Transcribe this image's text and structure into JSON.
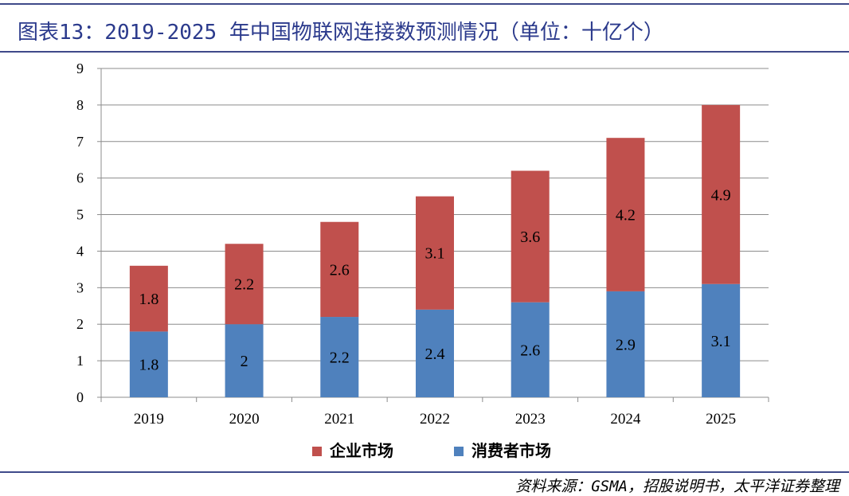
{
  "title": "图表13：2019-2025 年中国物联网连接数预测情况（单位：十亿个）",
  "source": "资料来源：GSMA，招股说明书，太平洋证券整理",
  "colors": {
    "enterprise": "#c0504d",
    "consumer": "#4f81bd",
    "frame": "#3f4a8a",
    "title": "#2b3a8c"
  },
  "chart_data": {
    "type": "bar",
    "stacked": true,
    "categories": [
      "2019",
      "2020",
      "2021",
      "2022",
      "2023",
      "2024",
      "2025"
    ],
    "series": [
      {
        "name": "消费者市场",
        "values": [
          1.8,
          2,
          2.2,
          2.4,
          2.6,
          2.9,
          3.1
        ],
        "labels": [
          "1.8",
          "2",
          "2.2",
          "2.4",
          "2.6",
          "2.9",
          "3.1"
        ]
      },
      {
        "name": "企业市场",
        "values": [
          1.8,
          2.2,
          2.6,
          3.1,
          3.6,
          4.2,
          4.9
        ],
        "labels": [
          "1.8",
          "2.2",
          "2.6",
          "3.1",
          "3.6",
          "4.2",
          "4.9"
        ]
      }
    ],
    "legend": [
      "企业市场",
      "消费者市场"
    ],
    "ylim": [
      0,
      9
    ],
    "yticks": [
      "0",
      "1",
      "2",
      "3",
      "4",
      "5",
      "6",
      "7",
      "8",
      "9"
    ],
    "grid": true,
    "legend_position": "bottom"
  }
}
